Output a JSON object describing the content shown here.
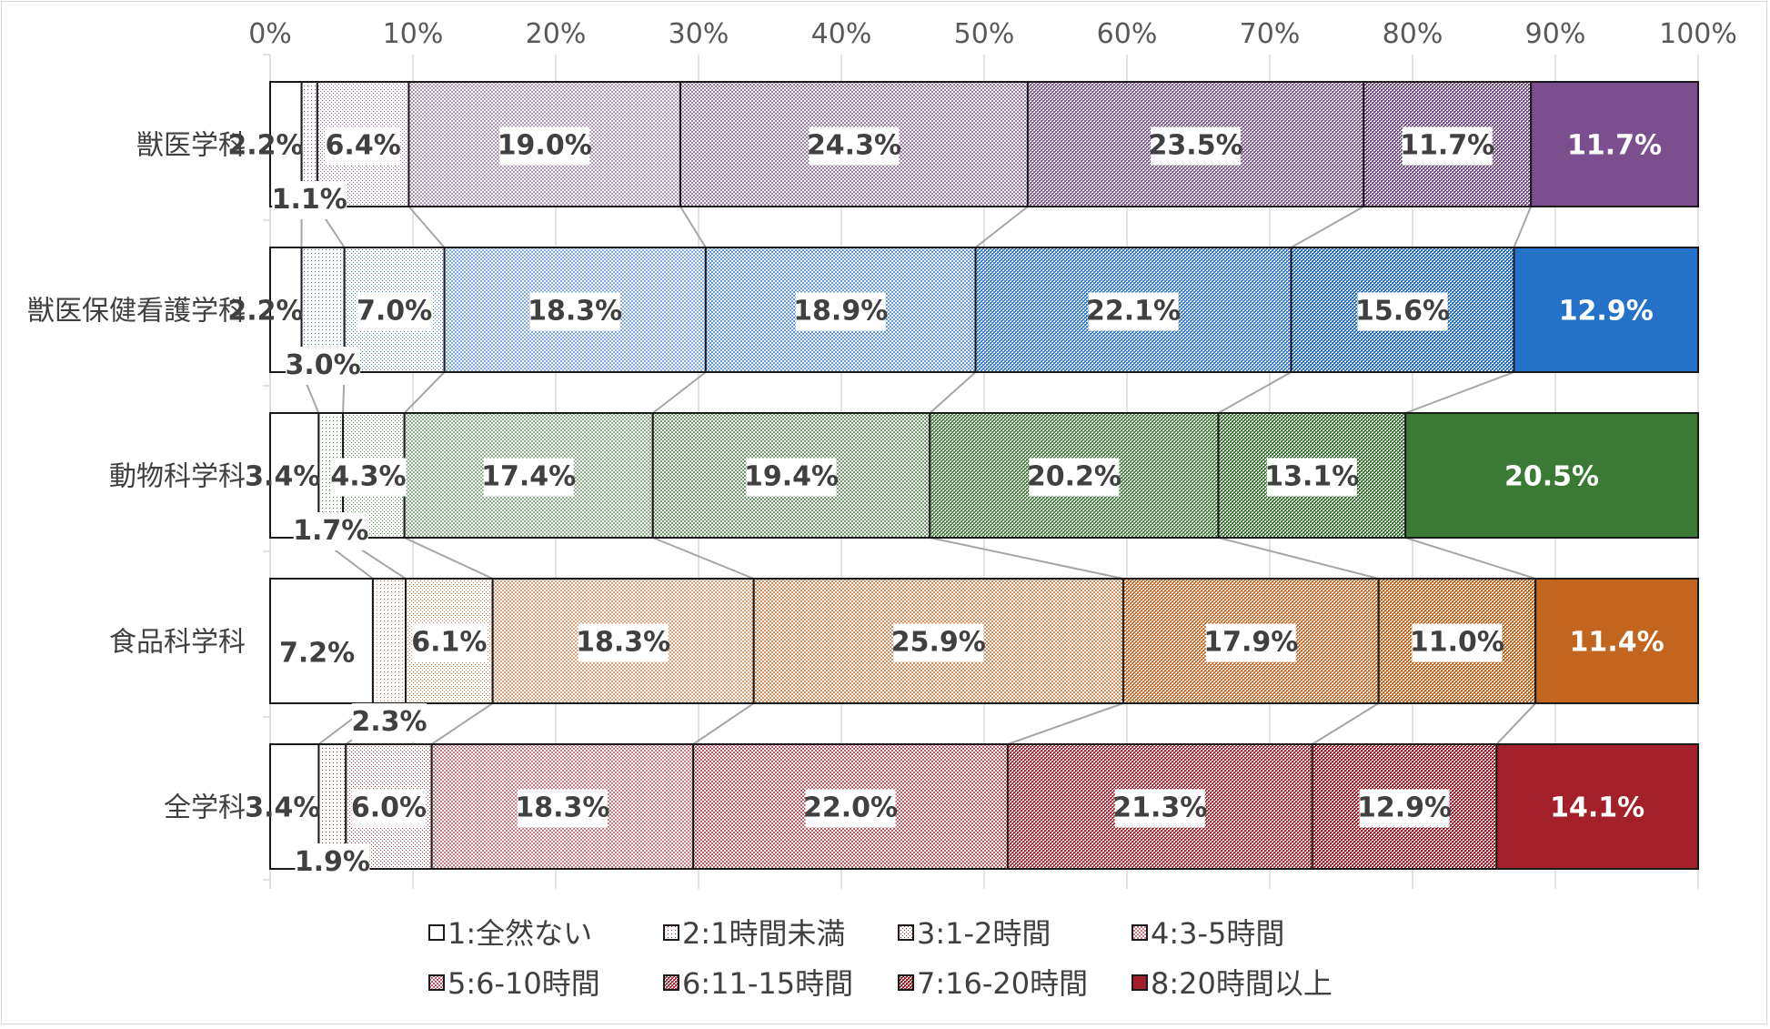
{
  "chart_data": {
    "type": "bar",
    "orientation": "horizontal",
    "stacked": "100%",
    "categories": [
      "獣医学科",
      "獣医保健看護学科",
      "動物科学科",
      "食品科学科",
      "全学科"
    ],
    "x_ticks": [
      "0%",
      "10%",
      "20%",
      "30%",
      "40%",
      "50%",
      "60%",
      "70%",
      "80%",
      "90%",
      "100%"
    ],
    "xlim": [
      0,
      100
    ],
    "grid": true,
    "legend_position": "bottom",
    "series": [
      {
        "name": "1:全然ない",
        "values": [
          2.2,
          2.2,
          3.4,
          7.2,
          3.4
        ],
        "labels": [
          "2.2%",
          "2.2%",
          "3.4%",
          "7.2%",
          "3.4%"
        ]
      },
      {
        "name": "2:1時間未満",
        "values": [
          1.1,
          3.0,
          1.7,
          2.3,
          1.9
        ],
        "labels": [
          "1.1%",
          "3.0%",
          "1.7%",
          "2.3%",
          "1.9%"
        ]
      },
      {
        "name": "3:1-2時間",
        "values": [
          6.4,
          7.0,
          4.3,
          6.1,
          6.0
        ],
        "labels": [
          "6.4%",
          "7.0%",
          "4.3%",
          "6.1%",
          "6.0%"
        ]
      },
      {
        "name": "4:3-5時間",
        "values": [
          19.0,
          18.3,
          17.4,
          18.3,
          18.3
        ],
        "labels": [
          "19.0%",
          "18.3%",
          "17.4%",
          "18.3%",
          "18.3%"
        ]
      },
      {
        "name": "5:6-10時間",
        "values": [
          24.3,
          18.9,
          19.4,
          25.9,
          22.0
        ],
        "labels": [
          "24.3%",
          "18.9%",
          "19.4%",
          "25.9%",
          "22.0%"
        ]
      },
      {
        "name": "6:11-15時間",
        "values": [
          23.5,
          22.1,
          20.2,
          17.9,
          21.3
        ],
        "labels": [
          "23.5%",
          "22.1%",
          "20.2%",
          "17.9%",
          "21.3%"
        ]
      },
      {
        "name": "7:16-20時間",
        "values": [
          11.7,
          15.6,
          13.1,
          11.0,
          12.9
        ],
        "labels": [
          "11.7%",
          "15.6%",
          "13.1%",
          "11.0%",
          "12.9%"
        ]
      },
      {
        "name": "8:20時間以上",
        "values": [
          11.7,
          12.9,
          20.5,
          11.4,
          14.1
        ],
        "labels": [
          "11.7%",
          "12.9%",
          "20.5%",
          "11.4%",
          "14.1%"
        ]
      }
    ],
    "colors": {
      "categories": [
        "#7b4f8e",
        "#2573c9",
        "#3b7a35",
        "#c2651e",
        "#a3202a"
      ],
      "legend": "#a3202a"
    }
  }
}
